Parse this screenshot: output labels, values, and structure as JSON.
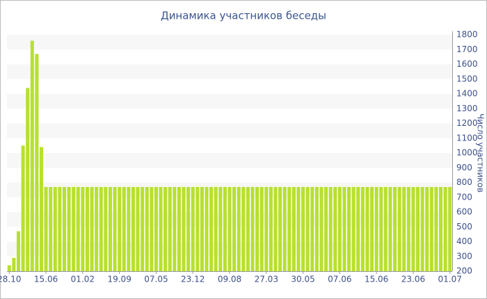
{
  "chart_data": {
    "type": "bar",
    "title": "Динамика участников беседы",
    "y_label": "Число участников",
    "categories": [
      "28.10",
      null,
      null,
      null,
      null,
      null,
      null,
      null,
      "15.06",
      null,
      null,
      null,
      null,
      null,
      null,
      null,
      "01.02",
      null,
      null,
      null,
      null,
      null,
      null,
      null,
      "19.09",
      null,
      null,
      null,
      null,
      null,
      null,
      null,
      "07.05",
      null,
      null,
      null,
      null,
      null,
      null,
      null,
      "23.12",
      null,
      null,
      null,
      null,
      null,
      null,
      null,
      "09.08",
      null,
      null,
      null,
      null,
      null,
      null,
      null,
      "27.03",
      null,
      null,
      null,
      null,
      null,
      null,
      null,
      "30.05",
      null,
      null,
      null,
      null,
      null,
      null,
      null,
      "07.06",
      null,
      null,
      null,
      null,
      null,
      null,
      null,
      "15.06",
      null,
      null,
      null,
      null,
      null,
      null,
      null,
      "23.06",
      null,
      null,
      null,
      null,
      null,
      null,
      null,
      "01.07"
    ],
    "values": [
      240,
      290,
      470,
      1050,
      1440,
      1760,
      1670,
      1040,
      770,
      770,
      770,
      770,
      770,
      770,
      770,
      770,
      770,
      770,
      770,
      770,
      770,
      770,
      770,
      770,
      770,
      770,
      770,
      770,
      770,
      770,
      770,
      770,
      770,
      770,
      770,
      770,
      770,
      770,
      770,
      770,
      770,
      770,
      770,
      770,
      770,
      770,
      770,
      770,
      770,
      770,
      770,
      770,
      770,
      770,
      770,
      770,
      770,
      770,
      770,
      770,
      770,
      770,
      770,
      770,
      770,
      770,
      770,
      770,
      770,
      770,
      770,
      770,
      770,
      770,
      770,
      770,
      770,
      770,
      770,
      770,
      770,
      770,
      770,
      770,
      770,
      770,
      770,
      770,
      770,
      770,
      770,
      770,
      770,
      770,
      770,
      770,
      770
    ],
    "color": "#b8e02e",
    "ylim": [
      200,
      1800
    ],
    "yticks": [
      200,
      300,
      400,
      500,
      600,
      700,
      800,
      900,
      1000,
      1100,
      1200,
      1300,
      1400,
      1500,
      1600,
      1700,
      1800
    ],
    "grid": true
  }
}
